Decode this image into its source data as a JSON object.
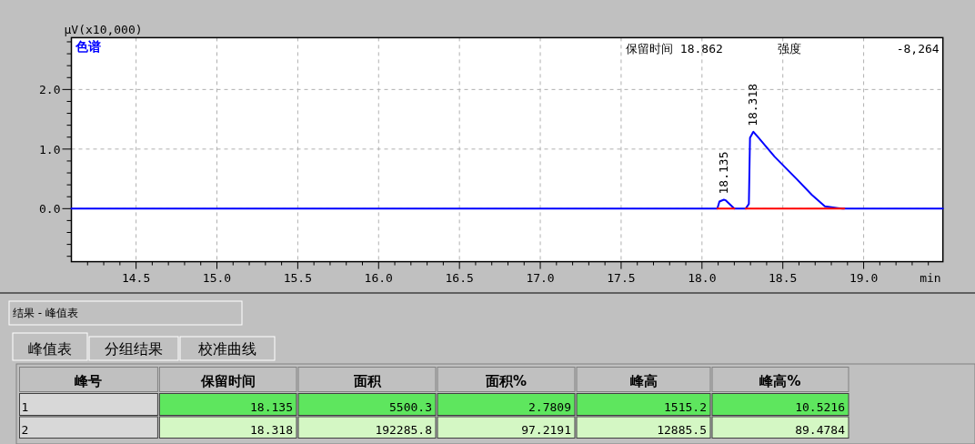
{
  "chart_data": {
    "type": "line",
    "title": "色谱",
    "xlabel": "min",
    "ylabel": "μV(x10,000)",
    "xlim": [
      14.1,
      19.49
    ],
    "ylim": [
      -0.89,
      2.87
    ],
    "xticks": [
      {
        "value": 14.2,
        "label": null
      },
      {
        "value": 14.3,
        "label": null
      },
      {
        "value": 14.4,
        "label": null
      },
      {
        "value": 14.5,
        "label": "14.5"
      },
      {
        "value": 14.6,
        "label": null
      },
      {
        "value": 14.7,
        "label": null
      },
      {
        "value": 14.8,
        "label": null
      },
      {
        "value": 14.9,
        "label": null
      },
      {
        "value": 15.0,
        "label": "15.0"
      },
      {
        "value": 15.1,
        "label": null
      },
      {
        "value": 15.2,
        "label": null
      },
      {
        "value": 15.3,
        "label": null
      },
      {
        "value": 15.4,
        "label": null
      },
      {
        "value": 15.5,
        "label": "15.5"
      },
      {
        "value": 15.6,
        "label": null
      },
      {
        "value": 15.7,
        "label": null
      },
      {
        "value": 15.8,
        "label": null
      },
      {
        "value": 15.9,
        "label": null
      },
      {
        "value": 16.0,
        "label": "16.0"
      },
      {
        "value": 16.1,
        "label": null
      },
      {
        "value": 16.2,
        "label": null
      },
      {
        "value": 16.3,
        "label": null
      },
      {
        "value": 16.4,
        "label": null
      },
      {
        "value": 16.5,
        "label": "16.5"
      },
      {
        "value": 16.6,
        "label": null
      },
      {
        "value": 16.7,
        "label": null
      },
      {
        "value": 16.8,
        "label": null
      },
      {
        "value": 16.9,
        "label": null
      },
      {
        "value": 17.0,
        "label": "17.0"
      },
      {
        "value": 17.1,
        "label": null
      },
      {
        "value": 17.2,
        "label": null
      },
      {
        "value": 17.3,
        "label": null
      },
      {
        "value": 17.4,
        "label": null
      },
      {
        "value": 17.5,
        "label": "17.5"
      },
      {
        "value": 17.6,
        "label": null
      },
      {
        "value": 17.7,
        "label": null
      },
      {
        "value": 17.8,
        "label": null
      },
      {
        "value": 17.9,
        "label": null
      },
      {
        "value": 18.0,
        "label": "18.0"
      },
      {
        "value": 18.1,
        "label": null
      },
      {
        "value": 18.2,
        "label": null
      },
      {
        "value": 18.3,
        "label": null
      },
      {
        "value": 18.4,
        "label": null
      },
      {
        "value": 18.5,
        "label": "18.5"
      },
      {
        "value": 18.6,
        "label": null
      },
      {
        "value": 18.7,
        "label": null
      },
      {
        "value": 18.8,
        "label": null
      },
      {
        "value": 18.9,
        "label": null
      },
      {
        "value": 19.0,
        "label": "19.0"
      },
      {
        "value": 19.1,
        "label": null
      },
      {
        "value": 19.2,
        "label": null
      },
      {
        "value": 19.3,
        "label": null
      },
      {
        "value": 19.4,
        "label": null
      }
    ],
    "yticks": [
      {
        "value": -0.8,
        "label": null
      },
      {
        "value": -0.6,
        "label": null
      },
      {
        "value": -0.4,
        "label": null
      },
      {
        "value": -0.2,
        "label": null
      },
      {
        "value": 0.0,
        "label": "0.0"
      },
      {
        "value": 0.2,
        "label": null
      },
      {
        "value": 0.4,
        "label": null
      },
      {
        "value": 0.6,
        "label": null
      },
      {
        "value": 0.8,
        "label": null
      },
      {
        "value": 1.0,
        "label": "1.0"
      },
      {
        "value": 1.2,
        "label": null
      },
      {
        "value": 1.4,
        "label": null
      },
      {
        "value": 1.6,
        "label": null
      },
      {
        "value": 1.8,
        "label": null
      },
      {
        "value": 2.0,
        "label": "2.0"
      },
      {
        "value": 2.2,
        "label": null
      },
      {
        "value": 2.4,
        "label": null
      },
      {
        "value": 2.6,
        "label": null
      },
      {
        "value": 2.8,
        "label": null
      }
    ],
    "grid": true,
    "marker": "none",
    "series": [
      {
        "color": "#0000ff",
        "x": [
          14.1,
          18.095,
          18.108,
          18.135,
          18.147,
          18.2,
          18.27,
          18.29,
          18.297,
          18.313,
          18.318,
          18.35,
          18.45,
          18.585,
          18.68,
          18.76,
          18.84,
          18.87,
          19.49
        ],
        "values": [
          0,
          0,
          0.12,
          0.15,
          0.14,
          0,
          0,
          0.08,
          1.19,
          1.27,
          1.29,
          1.19,
          0.87,
          0.5,
          0.23,
          0.04,
          0.01,
          0,
          0
        ]
      },
      {
        "color": "#ff0000",
        "x": [
          18.095,
          18.2
        ],
        "values": [
          0,
          0
        ]
      },
      {
        "color": "#ff0000",
        "x": [
          18.27,
          18.88
        ],
        "values": [
          0,
          0
        ]
      }
    ],
    "annotations": [
      {
        "text": "18.135",
        "x": 18.135,
        "y": 0.15
      },
      {
        "text": "18.318",
        "x": 18.318,
        "y": 1.29
      },
      "保留时间 18.862",
      "强度",
      "-8,264",
      "结果 - 峰值表",
      "峰值表",
      "分组结果",
      "校准曲线",
      "峰号",
      "保留时间",
      "面积",
      "面积%",
      "峰高",
      "峰高%",
      "1",
      "18.135",
      "5500.3",
      "2.7809",
      "1515.2",
      "10.5216",
      "2",
      "18.318",
      "192285.8",
      "97.2191",
      "12885.5",
      "89.4784"
    ]
  }
}
